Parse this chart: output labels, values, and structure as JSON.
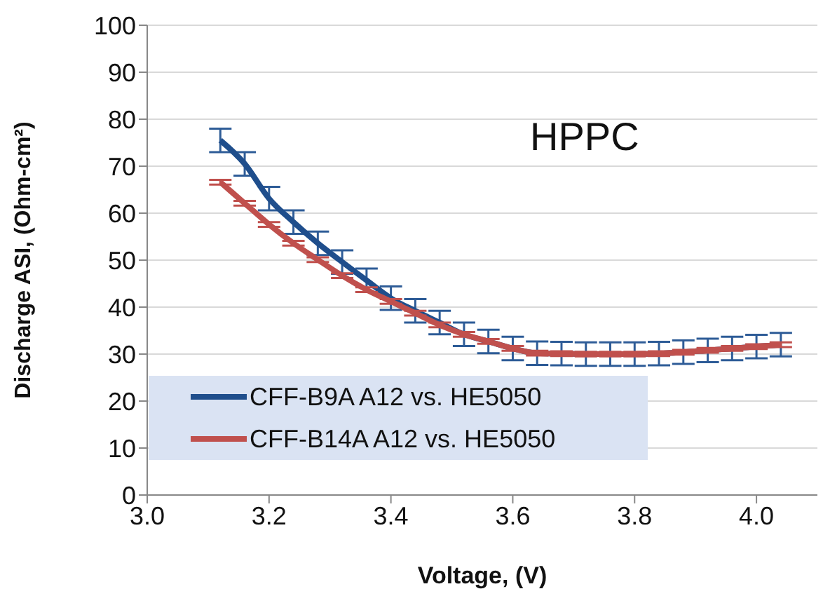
{
  "chart_data": {
    "type": "line",
    "xlabel": "Voltage, (V)",
    "ylabel": "Discharge ASI, (Ohm-cm²)",
    "annotations": [
      "HPPC"
    ],
    "x": [
      3.12,
      3.16,
      3.2,
      3.24,
      3.28,
      3.32,
      3.36,
      3.4,
      3.44,
      3.48,
      3.52,
      3.56,
      3.6,
      3.64,
      3.68,
      3.72,
      3.76,
      3.8,
      3.84,
      3.88,
      3.92,
      3.96,
      4.0,
      4.04
    ],
    "series": [
      {
        "name": "CFF-B9A A12 vs. HE5050",
        "color": "#1f4e8c",
        "values": [
          75.5,
          70.5,
          63.1,
          58.1,
          53.6,
          49.6,
          45.7,
          41.9,
          39.2,
          36.7,
          34.2,
          32.7,
          31.2,
          30.2,
          30.1,
          30.0,
          30.0,
          30.0,
          30.1,
          30.4,
          30.8,
          31.2,
          31.6,
          32.0
        ],
        "errors": [
          2.5,
          2.5,
          2.5,
          2.5,
          2.5,
          2.5,
          2.5,
          2.5,
          2.5,
          2.5,
          2.5,
          2.5,
          2.5,
          2.5,
          2.5,
          2.5,
          2.5,
          2.5,
          2.5,
          2.5,
          2.5,
          2.5,
          2.5,
          2.5
        ]
      },
      {
        "name": "CFF-B14A A12 vs. HE5050",
        "color": "#c0504d",
        "values": [
          66.6,
          62.1,
          57.6,
          53.6,
          50.1,
          46.7,
          43.7,
          41.2,
          38.7,
          36.2,
          34.2,
          32.7,
          31.2,
          30.2,
          30.1,
          30.0,
          30.0,
          30.0,
          30.1,
          30.4,
          30.8,
          31.2,
          31.6,
          32.0
        ],
        "errors": [
          0.5,
          0.5,
          0.5,
          0.5,
          0.5,
          0.5,
          0.5,
          0.5,
          0.5,
          0.5,
          0.5,
          0.5,
          0.5,
          0.5,
          0.5,
          0.5,
          0.5,
          0.5,
          0.5,
          0.5,
          0.5,
          0.5,
          0.5,
          0.5
        ]
      }
    ],
    "xlim": [
      3.0,
      4.1
    ],
    "xticks": [
      {
        "value": 3.0,
        "label": "3.0"
      },
      {
        "value": 3.2,
        "label": "3.2"
      },
      {
        "value": 3.4,
        "label": "3.4"
      },
      {
        "value": 3.6,
        "label": "3.6"
      },
      {
        "value": 3.8,
        "label": "3.8"
      },
      {
        "value": 4.0,
        "label": "4.0"
      }
    ],
    "ylim": [
      0,
      100
    ],
    "yticks": [
      0,
      10,
      20,
      30,
      40,
      50,
      60,
      70,
      80,
      90,
      100
    ],
    "grid": "y",
    "legend": "bottom left",
    "marker": "none",
    "line_style": "solid"
  }
}
